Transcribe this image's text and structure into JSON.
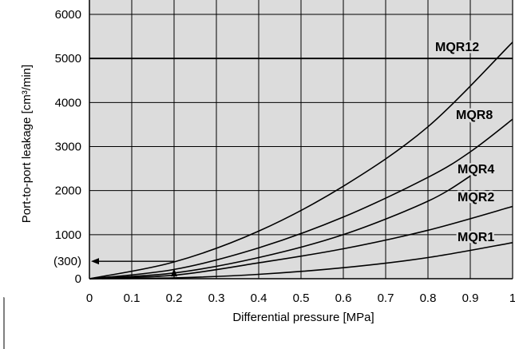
{
  "chart_data": {
    "type": "line",
    "title": "",
    "xlabel": "Differential pressure [MPa]",
    "ylabel": "Port-to-port leakage [cm³/min]",
    "xlim": [
      0,
      1
    ],
    "ylim": [
      0,
      6000
    ],
    "x_ticks": [
      0,
      0.1,
      0.2,
      0.3,
      0.4,
      0.5,
      0.6,
      0.7,
      0.8,
      0.9,
      1
    ],
    "x_tick_labels": [
      "0",
      "0.1",
      "0.2",
      "0.3",
      "0.4",
      "0.5",
      "0.6",
      "0.7",
      "0.8",
      "0.9",
      "1"
    ],
    "y_ticks": [
      0,
      1000,
      2000,
      3000,
      4000,
      5000,
      6000
    ],
    "y_tick_labels": [
      "0",
      "1000",
      "2000",
      "3000",
      "4000",
      "5000",
      "6000"
    ],
    "grid": true,
    "annotations": [
      {
        "text": "(300)",
        "type": "y-callout",
        "y": 450,
        "from_x": 0.2
      }
    ],
    "series": [
      {
        "name": "MQR12",
        "x": [
          0,
          0.2,
          0.4,
          0.6,
          0.8,
          1.0
        ],
        "y": [
          0,
          380,
          1080,
          2100,
          3450,
          5370
        ]
      },
      {
        "name": "MQR8",
        "x": [
          0,
          0.2,
          0.4,
          0.6,
          0.8,
          0.9,
          1.0
        ],
        "y": [
          0,
          210,
          700,
          1400,
          2300,
          2880,
          3620
        ]
      },
      {
        "name": "MQR4",
        "x": [
          0,
          0.2,
          0.4,
          0.6,
          0.8,
          0.9
        ],
        "y": [
          0,
          130,
          480,
          1000,
          1760,
          2330
        ]
      },
      {
        "name": "MQR2",
        "x": [
          0,
          0.2,
          0.4,
          0.6,
          0.8,
          1.0
        ],
        "y": [
          0,
          80,
          360,
          680,
          1100,
          1640
        ]
      },
      {
        "name": "MQR1",
        "x": [
          0,
          0.2,
          0.4,
          0.6,
          0.8,
          1.0
        ],
        "y": [
          0,
          20,
          100,
          250,
          480,
          820
        ]
      }
    ]
  }
}
